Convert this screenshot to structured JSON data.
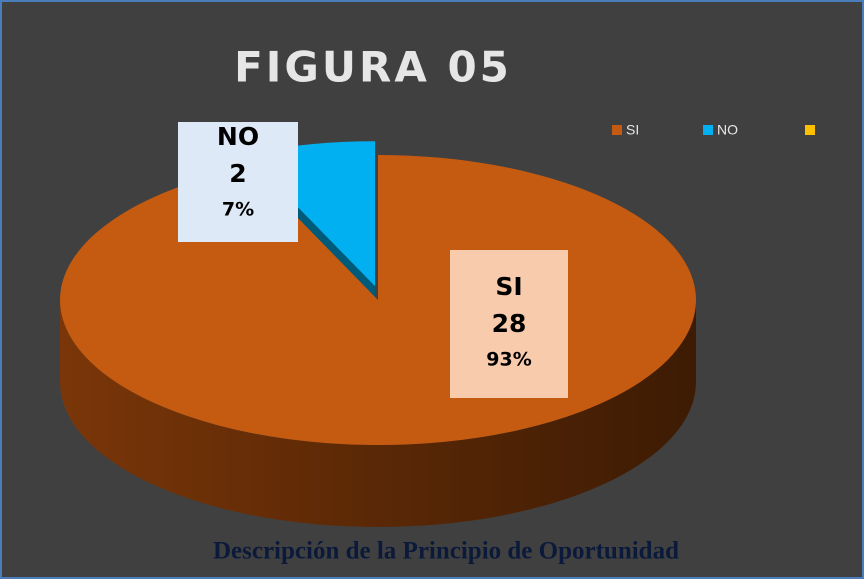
{
  "chart_data": {
    "type": "pie3d",
    "title": "FIGURA 05",
    "caption": "Descripción de la Principio de Oportunidad",
    "categories": [
      "SI",
      "NO",
      null
    ],
    "values": [
      28,
      2,
      0
    ],
    "percentages": [
      93,
      7,
      null
    ],
    "percentage_labels": [
      "93%",
      "7%",
      null
    ],
    "colors": [
      "#c55a11",
      "#00b0f0",
      "#ffc000"
    ],
    "legend": "top-right"
  }
}
